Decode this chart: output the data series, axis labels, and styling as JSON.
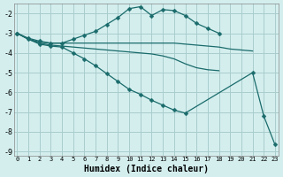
{
  "xlabel": "Humidex (Indice chaleur)",
  "background_color": "#d4eeee",
  "grid_color": "#aacccc",
  "line_color": "#1a6b6b",
  "ylim": [
    -9.2,
    -1.5
  ],
  "xlim": [
    -0.3,
    23.3
  ],
  "yticks": [
    -9,
    -8,
    -7,
    -6,
    -5,
    -4,
    -3,
    -2
  ],
  "xticks": [
    0,
    1,
    2,
    3,
    4,
    5,
    6,
    7,
    8,
    9,
    10,
    11,
    12,
    13,
    14,
    15,
    16,
    17,
    18,
    19,
    20,
    21,
    22,
    23
  ],
  "lines": [
    {
      "x": [
        0,
        1,
        2,
        3,
        4,
        5,
        6,
        7,
        8,
        9,
        10,
        11,
        12,
        13,
        14,
        15,
        16,
        17,
        18
      ],
      "y": [
        -3.0,
        -3.25,
        -3.4,
        -3.5,
        -3.5,
        -3.3,
        -3.1,
        -2.9,
        -2.55,
        -2.2,
        -1.75,
        -1.65,
        -2.1,
        -1.8,
        -1.85,
        -2.1,
        -2.5,
        -2.75,
        -3.0
      ],
      "marker": true,
      "markersize": 2.5
    },
    {
      "x": [
        0,
        1,
        2,
        3,
        4,
        5,
        6,
        7,
        8,
        9,
        10,
        11,
        12,
        13,
        14,
        15,
        16,
        17,
        18,
        19,
        20,
        21
      ],
      "y": [
        -3.0,
        -3.3,
        -3.45,
        -3.5,
        -3.5,
        -3.5,
        -3.5,
        -3.5,
        -3.5,
        -3.5,
        -3.5,
        -3.5,
        -3.5,
        -3.5,
        -3.5,
        -3.55,
        -3.6,
        -3.65,
        -3.7,
        -3.8,
        -3.85,
        -3.9
      ],
      "marker": false,
      "markersize": 0
    },
    {
      "x": [
        0,
        1,
        2,
        3,
        4,
        5,
        6,
        7,
        8,
        9,
        10,
        11,
        12,
        13,
        14,
        15,
        16,
        17,
        18
      ],
      "y": [
        -3.0,
        -3.3,
        -3.5,
        -3.6,
        -3.65,
        -3.7,
        -3.75,
        -3.8,
        -3.85,
        -3.9,
        -3.95,
        -4.0,
        -4.05,
        -4.15,
        -4.3,
        -4.55,
        -4.75,
        -4.85,
        -4.9
      ],
      "marker": false,
      "markersize": 0
    },
    {
      "x": [
        0,
        1,
        2,
        3,
        4,
        5,
        6,
        7,
        8,
        9,
        10,
        11,
        12,
        13,
        14,
        15,
        21,
        22,
        23
      ],
      "y": [
        -3.0,
        -3.3,
        -3.55,
        -3.65,
        -3.7,
        -4.0,
        -4.3,
        -4.65,
        -5.05,
        -5.45,
        -5.85,
        -6.1,
        -6.4,
        -6.65,
        -6.9,
        -7.05,
        -5.0,
        -7.2,
        -8.65
      ],
      "marker": true,
      "markersize": 2.5
    }
  ]
}
